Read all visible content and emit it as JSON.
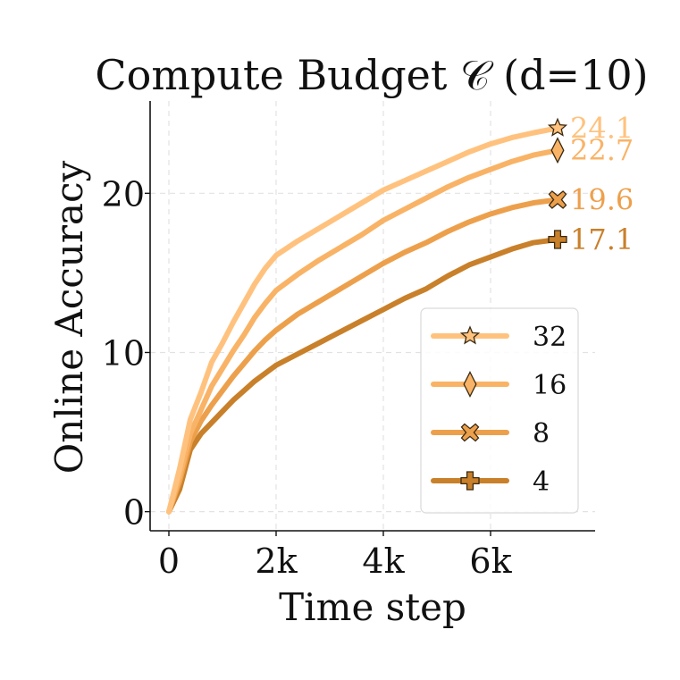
{
  "chart_data": {
    "type": "line",
    "title": "Compute Budget 𝒞 (d=10)",
    "xlabel": "Time step",
    "ylabel": "Online Accuracy",
    "xlim": [
      -350,
      7950
    ],
    "ylim": [
      -1.2,
      25.8
    ],
    "xticks": [
      0,
      2000,
      4000,
      6000
    ],
    "xtick_labels": [
      "0",
      "2k",
      "4k",
      "6k"
    ],
    "yticks": [
      0,
      10,
      20
    ],
    "ytick_labels": [
      "0",
      "10",
      "20"
    ],
    "grid": true,
    "legend_position": "lower-right",
    "series": [
      {
        "name": "32",
        "marker": "star",
        "color": "#FFC27E",
        "end_label": "24.1",
        "points": [
          [
            0,
            0
          ],
          [
            200,
            2.7
          ],
          [
            400,
            5.8
          ],
          [
            600,
            7.5
          ],
          [
            800,
            9.4
          ],
          [
            1000,
            10.6
          ],
          [
            1200,
            11.9
          ],
          [
            1400,
            13.1
          ],
          [
            1600,
            14.3
          ],
          [
            1800,
            15.3
          ],
          [
            2000,
            16.1
          ],
          [
            2400,
            17.0
          ],
          [
            2800,
            17.8
          ],
          [
            3200,
            18.6
          ],
          [
            3600,
            19.4
          ],
          [
            4000,
            20.2
          ],
          [
            4400,
            20.8
          ],
          [
            4800,
            21.4
          ],
          [
            5200,
            22.0
          ],
          [
            5600,
            22.6
          ],
          [
            6000,
            23.1
          ],
          [
            6400,
            23.5
          ],
          [
            6800,
            23.8
          ],
          [
            7250,
            24.1
          ]
        ]
      },
      {
        "name": "16",
        "marker": "diamond",
        "color": "#F9B366",
        "end_label": "22.7",
        "points": [
          [
            0,
            0
          ],
          [
            200,
            2.2
          ],
          [
            400,
            4.9
          ],
          [
            600,
            6.4
          ],
          [
            800,
            7.9
          ],
          [
            1000,
            9.0
          ],
          [
            1200,
            10.1
          ],
          [
            1400,
            11.1
          ],
          [
            1600,
            12.2
          ],
          [
            1800,
            13.1
          ],
          [
            2000,
            13.9
          ],
          [
            2400,
            14.9
          ],
          [
            2800,
            15.8
          ],
          [
            3200,
            16.6
          ],
          [
            3600,
            17.4
          ],
          [
            4000,
            18.3
          ],
          [
            4400,
            19.0
          ],
          [
            4800,
            19.7
          ],
          [
            5200,
            20.4
          ],
          [
            5600,
            21.0
          ],
          [
            6000,
            21.5
          ],
          [
            6400,
            22.0
          ],
          [
            6800,
            22.4
          ],
          [
            7250,
            22.7
          ]
        ]
      },
      {
        "name": "8",
        "marker": "x",
        "color": "#EDA04C",
        "end_label": "19.6",
        "points": [
          [
            0,
            0
          ],
          [
            200,
            1.9
          ],
          [
            400,
            4.4
          ],
          [
            600,
            5.7
          ],
          [
            800,
            6.7
          ],
          [
            1000,
            7.6
          ],
          [
            1200,
            8.5
          ],
          [
            1400,
            9.3
          ],
          [
            1600,
            10.1
          ],
          [
            1800,
            10.8
          ],
          [
            2000,
            11.4
          ],
          [
            2400,
            12.4
          ],
          [
            2800,
            13.2
          ],
          [
            3200,
            14.0
          ],
          [
            3600,
            14.8
          ],
          [
            4000,
            15.6
          ],
          [
            4400,
            16.3
          ],
          [
            4800,
            16.9
          ],
          [
            5200,
            17.6
          ],
          [
            5600,
            18.2
          ],
          [
            6000,
            18.7
          ],
          [
            6400,
            19.1
          ],
          [
            6800,
            19.4
          ],
          [
            7250,
            19.6
          ]
        ]
      },
      {
        "name": "4",
        "marker": "plus",
        "color": "#C9802A",
        "end_label": "17.1",
        "points": [
          [
            0,
            0
          ],
          [
            200,
            1.4
          ],
          [
            400,
            3.9
          ],
          [
            600,
            4.9
          ],
          [
            800,
            5.6
          ],
          [
            1000,
            6.3
          ],
          [
            1200,
            7.0
          ],
          [
            1400,
            7.6
          ],
          [
            1600,
            8.2
          ],
          [
            1800,
            8.7
          ],
          [
            2000,
            9.2
          ],
          [
            2400,
            9.9
          ],
          [
            2800,
            10.6
          ],
          [
            3200,
            11.3
          ],
          [
            3600,
            12.0
          ],
          [
            4000,
            12.7
          ],
          [
            4400,
            13.4
          ],
          [
            4800,
            14.0
          ],
          [
            5200,
            14.8
          ],
          [
            5600,
            15.5
          ],
          [
            6000,
            16.0
          ],
          [
            6400,
            16.5
          ],
          [
            6800,
            16.9
          ],
          [
            7250,
            17.1
          ]
        ]
      }
    ]
  }
}
